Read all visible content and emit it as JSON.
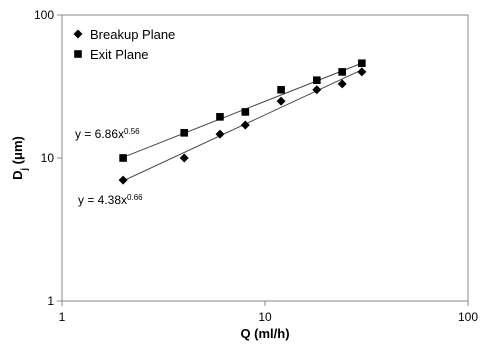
{
  "chart_data": {
    "type": "scatter",
    "xlabel": "Q (ml/h)",
    "ylabel": {
      "text": "D",
      "subscript": "j",
      "suffix": " (μm)"
    },
    "xscale": "log",
    "yscale": "log",
    "xlim": [
      1,
      100
    ],
    "ylim": [
      1,
      100
    ],
    "xticks": [
      1,
      10,
      100
    ],
    "yticks": [
      1,
      10,
      100
    ],
    "legend": "top-left",
    "series": [
      {
        "name": "Breakup Plane",
        "color": "#000000",
        "marker": "diamond",
        "x": [
          2,
          4,
          6,
          8,
          12,
          18,
          24,
          30
        ],
        "values": [
          7,
          10,
          14.7,
          17,
          25,
          30,
          33,
          40
        ],
        "fit": {
          "coefficient": 4.38,
          "exponent": 0.66,
          "label": "y = 4.38x",
          "label_exponent": "0.66"
        }
      },
      {
        "name": "Exit Plane",
        "color": "#000000",
        "marker": "square",
        "x": [
          2,
          4,
          6,
          8,
          12,
          18,
          24,
          30
        ],
        "values": [
          10,
          15,
          19.4,
          21,
          30,
          35,
          40,
          46
        ],
        "fit": {
          "coefficient": 6.86,
          "exponent": 0.56,
          "label": "y = 6.86x",
          "label_exponent": "0.56"
        }
      }
    ]
  }
}
